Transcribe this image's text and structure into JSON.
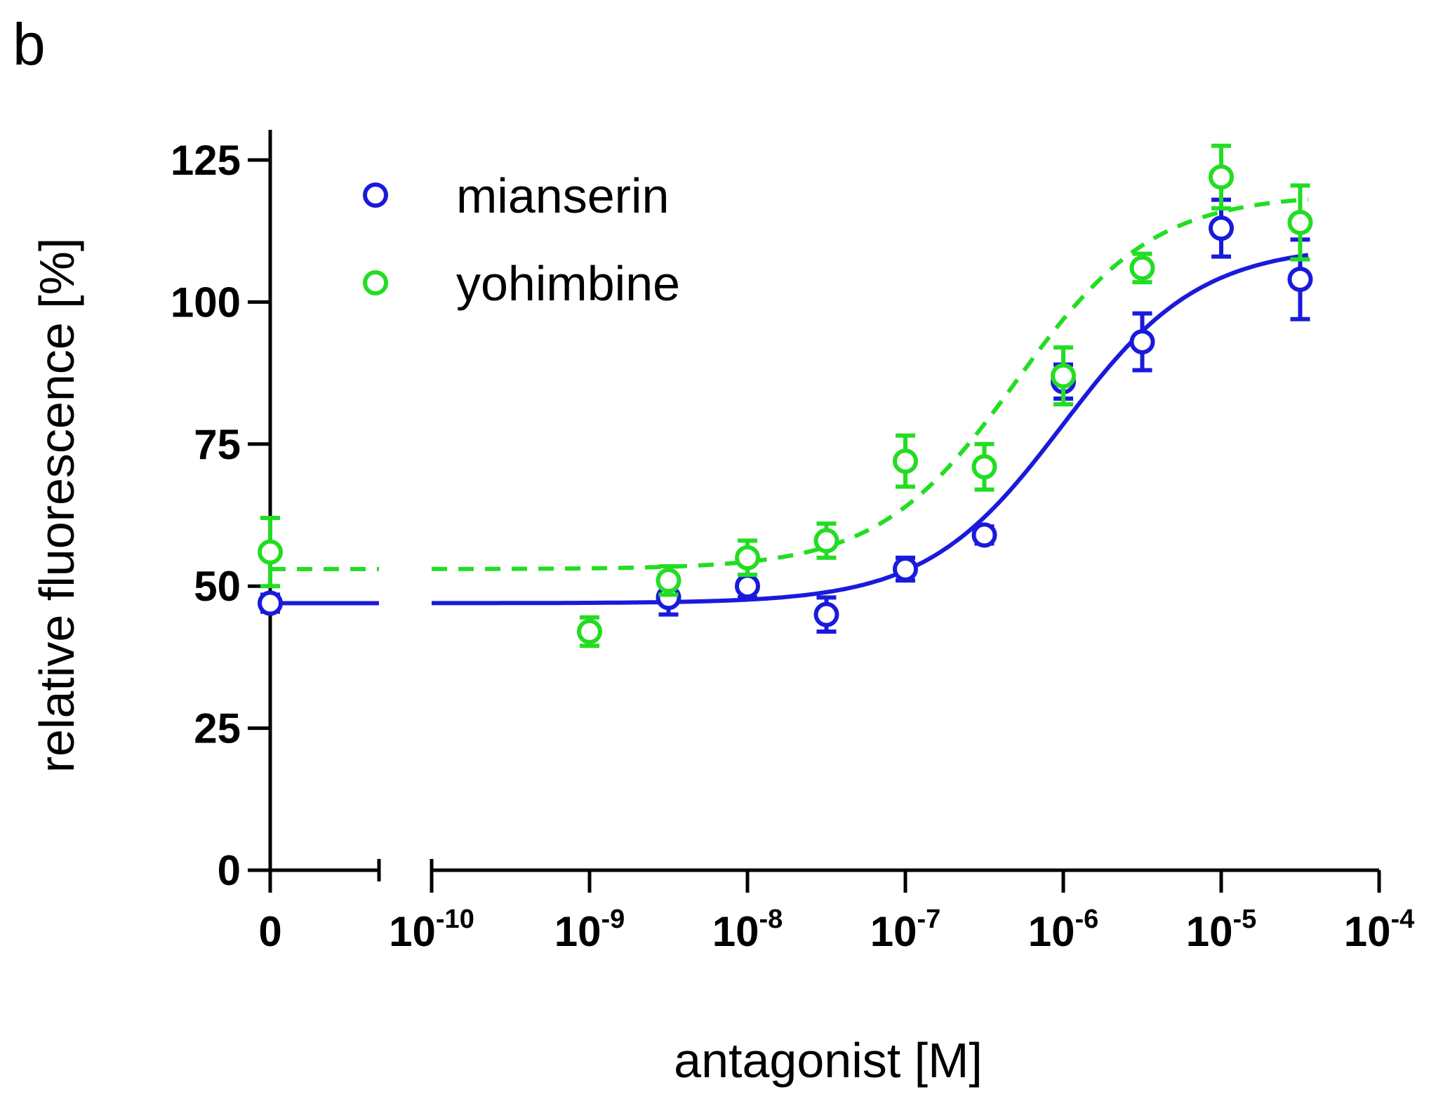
{
  "panel_label": "b",
  "chart_data": {
    "type": "scatter",
    "title": "",
    "xlabel": "antagonist [M]",
    "ylabel": "relative fluorescence [%]",
    "x_scale": "log10 (molar), with separate zero segment",
    "ylim": [
      0,
      125
    ],
    "yticks": [
      0,
      25,
      50,
      75,
      100,
      125
    ],
    "xticks": [
      {
        "value": 0,
        "label": "0",
        "exp": ""
      },
      {
        "value": -10,
        "label": "10",
        "exp": "-10"
      },
      {
        "value": -9,
        "label": "10",
        "exp": "-9"
      },
      {
        "value": -8,
        "label": "10",
        "exp": "-8"
      },
      {
        "value": -7,
        "label": "10",
        "exp": "-7"
      },
      {
        "value": -6,
        "label": "10",
        "exp": "-6"
      },
      {
        "value": -5,
        "label": "10",
        "exp": "-5"
      },
      {
        "value": -4,
        "label": "10",
        "exp": "-4"
      }
    ],
    "series": [
      {
        "name": "mianserin",
        "color": "#1a1adc",
        "line_style": "solid",
        "fit": {
          "bottom": 47,
          "top": 110,
          "logEC50": -6.0,
          "hill": 1.0
        },
        "points": [
          {
            "x": "0",
            "y": 47,
            "err": 1.5
          },
          {
            "x": -8.5,
            "y": 48,
            "err": 3.0
          },
          {
            "x": -8.0,
            "y": 50,
            "err": 2.0
          },
          {
            "x": -7.5,
            "y": 45,
            "err": 3.0
          },
          {
            "x": -7.0,
            "y": 53,
            "err": 2.0
          },
          {
            "x": -6.5,
            "y": 59,
            "err": 1.5
          },
          {
            "x": -6.0,
            "y": 86,
            "err": 3.0
          },
          {
            "x": -5.5,
            "y": 93,
            "err": 5.0
          },
          {
            "x": -5.0,
            "y": 113,
            "err": 5.0
          },
          {
            "x": -4.5,
            "y": 104,
            "err": 7.0
          }
        ]
      },
      {
        "name": "yohimbine",
        "color": "#22dd22",
        "line_style": "dashed",
        "fit": {
          "bottom": 53,
          "top": 119,
          "logEC50": -6.3,
          "hill": 1.0
        },
        "points": [
          {
            "x": "0",
            "y": 56,
            "err": 6.0
          },
          {
            "x": -9.0,
            "y": 42,
            "err": 2.5
          },
          {
            "x": -8.5,
            "y": 51,
            "err": 2.5
          },
          {
            "x": -8.0,
            "y": 55,
            "err": 3.0
          },
          {
            "x": -7.5,
            "y": 58,
            "err": 3.0
          },
          {
            "x": -7.0,
            "y": 72,
            "err": 4.5
          },
          {
            "x": -6.5,
            "y": 71,
            "err": 4.0
          },
          {
            "x": -6.0,
            "y": 87,
            "err": 5.0
          },
          {
            "x": -5.5,
            "y": 106,
            "err": 2.5
          },
          {
            "x": -5.0,
            "y": 122,
            "err": 5.5
          },
          {
            "x": -4.5,
            "y": 114,
            "err": 6.5
          }
        ]
      }
    ],
    "legend": {
      "position": "top-left"
    }
  }
}
